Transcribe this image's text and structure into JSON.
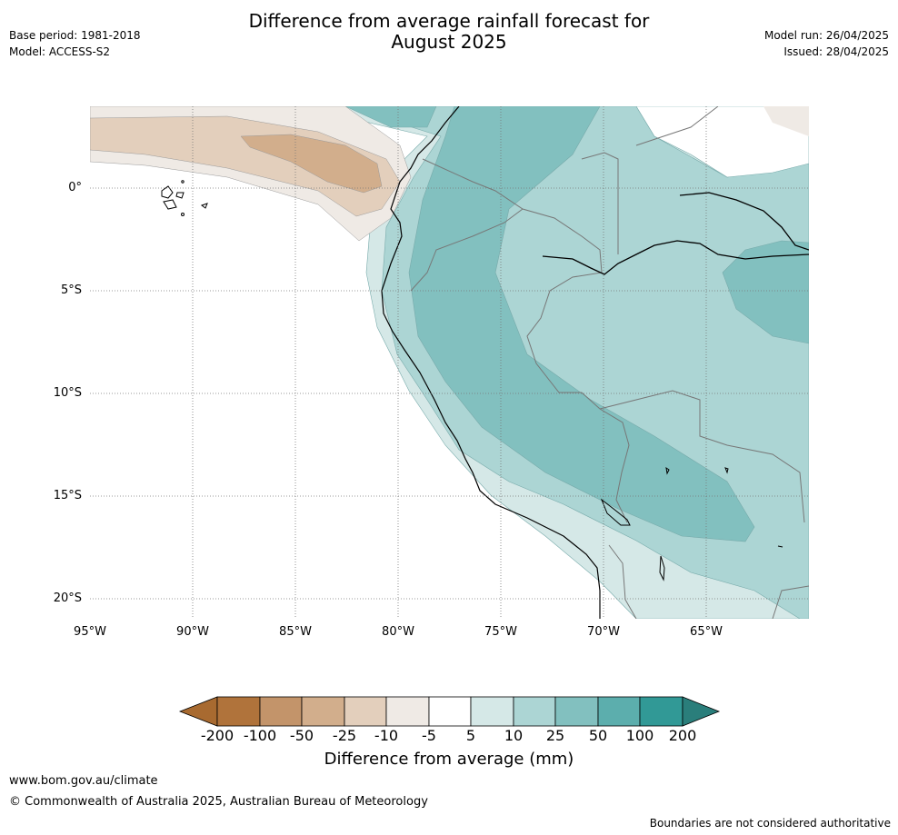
{
  "header": {
    "title_line1": "Difference from average rainfall forecast for",
    "title_line2": "August 2025",
    "base_period": "Base period: 1981-2018",
    "model": "Model: ACCESS-S2",
    "model_run": "Model run: 26/04/2025",
    "issued": "Issued: 28/04/2025"
  },
  "map": {
    "lon_range": [
      -95,
      -60
    ],
    "lat_range": [
      -21,
      4
    ],
    "lat_ticks": [
      "0°",
      "5°S",
      "10°S",
      "15°S",
      "20°S"
    ],
    "lon_ticks": [
      "95°W",
      "90°W",
      "85°W",
      "80°W",
      "75°W",
      "70°W",
      "65°W"
    ],
    "region": "Western South America (Ecuador, Peru, Bolivia, northern Chile)"
  },
  "legend": {
    "title": "Difference from average (mm)",
    "labels": [
      "-200",
      "-100",
      "-50",
      "-25",
      "-10",
      "-5",
      "5",
      "10",
      "25",
      "50",
      "100",
      "200"
    ],
    "colors": [
      "#a86a30",
      "#b0733b",
      "#c3946a",
      "#d2ae8c",
      "#e3cfbc",
      "#efeae5",
      "#ffffff",
      "#d5e8e7",
      "#acd5d4",
      "#82c0bf",
      "#5caead",
      "#319996",
      "#2a7e7b"
    ]
  },
  "footer": {
    "url": "www.bom.gov.au/climate",
    "copyright": "© Commonwealth of Australia 2025, Australian Bureau of Meteorology",
    "note": "Boundaries are not considered authoritative"
  }
}
